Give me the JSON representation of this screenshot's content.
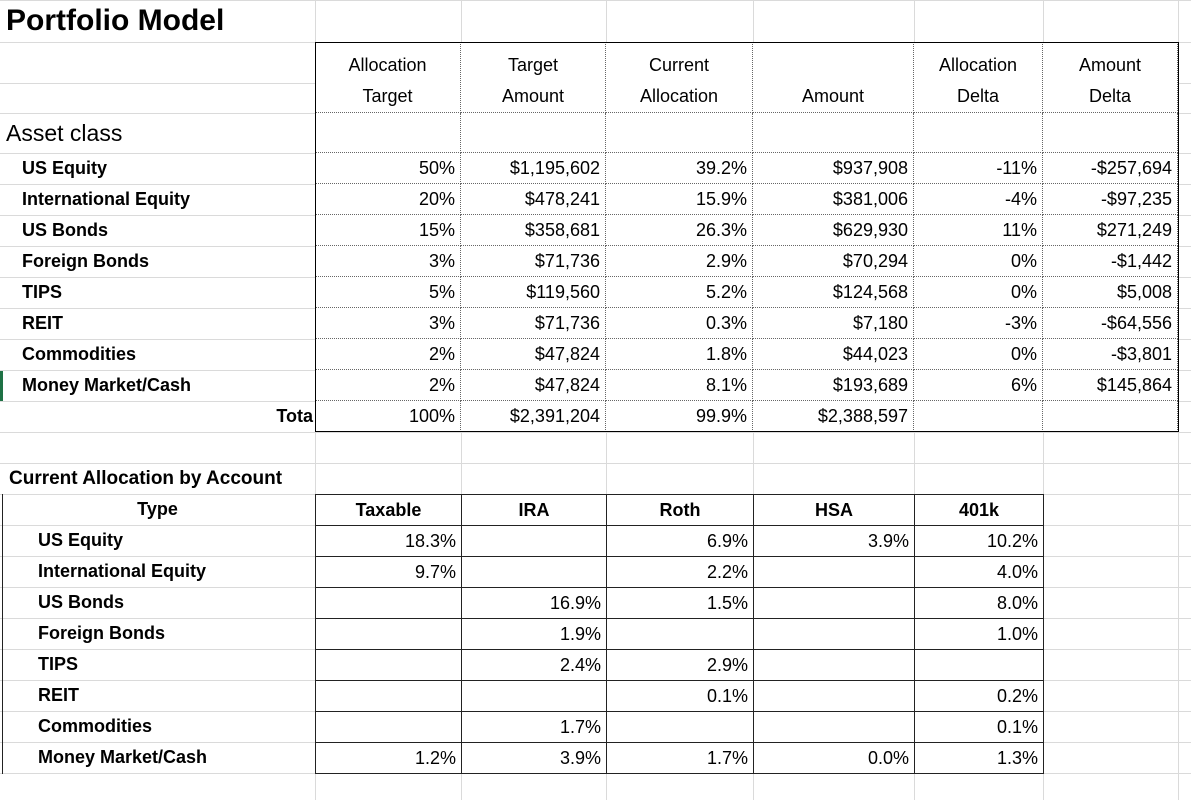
{
  "title": "Portfolio Model",
  "allocation_table": {
    "columns": [
      [
        "Allocation",
        "Target"
      ],
      [
        "Target",
        "Amount"
      ],
      [
        "Current",
        "Allocation"
      ],
      [
        "Amount"
      ],
      [
        "Allocation",
        "Delta"
      ],
      [
        "Amount",
        "Delta"
      ]
    ],
    "section_label": "Asset class",
    "rows": [
      {
        "label": "US Equity",
        "cells": [
          "50%",
          "$1,195,602",
          "39.2%",
          "$937,908",
          "-11%",
          "-$257,694"
        ]
      },
      {
        "label": "International Equity",
        "cells": [
          "20%",
          "$478,241",
          "15.9%",
          "$381,006",
          "-4%",
          "-$97,235"
        ]
      },
      {
        "label": "US Bonds",
        "cells": [
          "15%",
          "$358,681",
          "26.3%",
          "$629,930",
          "11%",
          "$271,249"
        ]
      },
      {
        "label": "Foreign Bonds",
        "cells": [
          "3%",
          "$71,736",
          "2.9%",
          "$70,294",
          "0%",
          "-$1,442"
        ]
      },
      {
        "label": "TIPS",
        "cells": [
          "5%",
          "$119,560",
          "5.2%",
          "$124,568",
          "0%",
          "$5,008"
        ]
      },
      {
        "label": "REIT",
        "cells": [
          "3%",
          "$71,736",
          "0.3%",
          "$7,180",
          "-3%",
          "-$64,556"
        ]
      },
      {
        "label": "Commodities",
        "cells": [
          "2%",
          "$47,824",
          "1.8%",
          "$44,023",
          "0%",
          "-$3,801"
        ]
      },
      {
        "label": "Money Market/Cash",
        "cells": [
          "2%",
          "$47,824",
          "8.1%",
          "$193,689",
          "6%",
          "$145,864"
        ]
      }
    ],
    "total": {
      "label": "Tota",
      "cells": [
        "100%",
        "$2,391,204",
        "99.9%",
        "$2,388,597"
      ]
    }
  },
  "account_table": {
    "title": "Current Allocation by Account",
    "type_label": "Type",
    "columns": [
      "Taxable",
      "IRA",
      "Roth",
      "HSA",
      "401k"
    ],
    "rows": [
      {
        "label": "US Equity",
        "cells": [
          "18.3%",
          null,
          "6.9%",
          "3.9%",
          "10.2%"
        ]
      },
      {
        "label": "International Equity",
        "cells": [
          "9.7%",
          null,
          "2.2%",
          null,
          "4.0%"
        ]
      },
      {
        "label": "US Bonds",
        "cells": [
          null,
          "16.9%",
          "1.5%",
          null,
          "8.0%"
        ]
      },
      {
        "label": "Foreign Bonds",
        "cells": [
          null,
          "1.9%",
          null,
          null,
          "1.0%"
        ]
      },
      {
        "label": "TIPS",
        "cells": [
          null,
          "2.4%",
          "2.9%",
          null,
          null
        ]
      },
      {
        "label": "REIT",
        "cells": [
          null,
          null,
          "0.1%",
          null,
          "0.2%"
        ]
      },
      {
        "label": "Commodities",
        "cells": [
          null,
          "1.7%",
          null,
          null,
          "0.1%"
        ]
      },
      {
        "label": "Money Market/Cash",
        "cells": [
          "1.2%",
          "3.9%",
          "1.7%",
          "0.0%",
          "1.3%"
        ]
      }
    ]
  }
}
